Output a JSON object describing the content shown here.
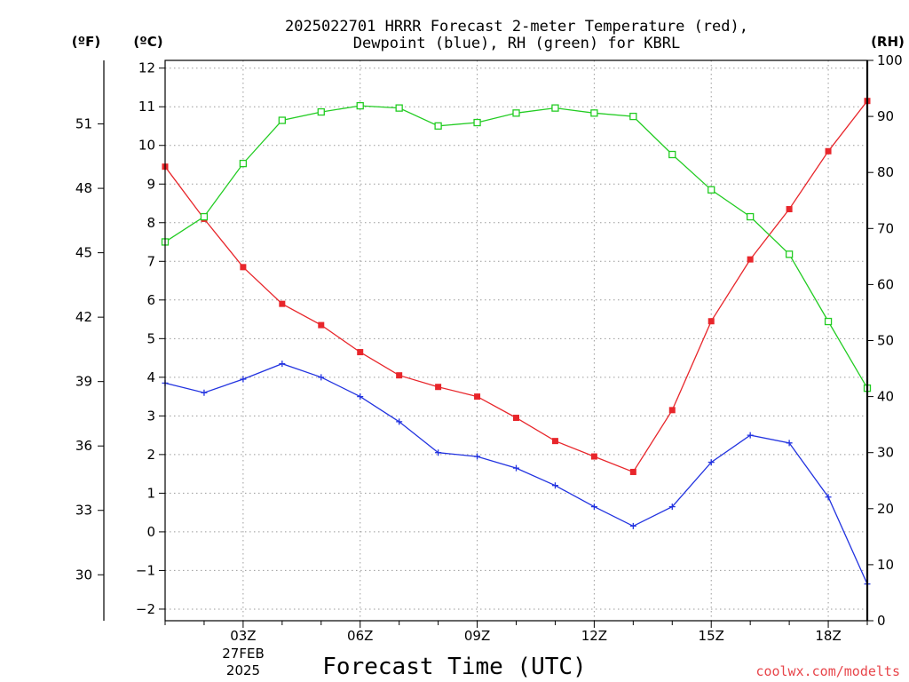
{
  "chart_data": {
    "type": "line",
    "title_lines": [
      "2025022701 HRRR Forecast 2-meter Temperature (red),",
      "Dewpoint (blue), RH (green) for KBRL"
    ],
    "xlabel": "Forecast Time (UTC)",
    "credit": "coolwx.com/modelts",
    "units": {
      "left_f": "(ºF)",
      "left_c": "(ºC)",
      "right": "(RH)"
    },
    "x_hours": [
      1,
      2,
      3,
      4,
      5,
      6,
      7,
      8,
      9,
      10,
      11,
      12,
      13,
      14,
      15,
      16,
      17,
      18,
      19
    ],
    "xlim": [
      1,
      19
    ],
    "x_ticks": [
      {
        "hour": 3,
        "label": "03Z"
      },
      {
        "hour": 6,
        "label": "06Z"
      },
      {
        "hour": 9,
        "label": "09Z"
      },
      {
        "hour": 12,
        "label": "12Z"
      },
      {
        "hour": 15,
        "label": "15Z"
      },
      {
        "hour": 18,
        "label": "18Z"
      }
    ],
    "date_labels": [
      "27FEB",
      "2025"
    ],
    "y_celsius": {
      "lim": [
        -2.3,
        12.2
      ],
      "ticks": [
        -2,
        -1,
        0,
        1,
        2,
        3,
        4,
        5,
        6,
        7,
        8,
        9,
        10,
        11,
        12
      ],
      "tick_labels": [
        "−2",
        "−1",
        "0",
        "1",
        "2",
        "3",
        "4",
        "5",
        "6",
        "7",
        "8",
        "9",
        "10",
        "11",
        "12"
      ]
    },
    "y_fahrenheit": {
      "ticks": [
        30,
        33,
        36,
        39,
        42,
        45,
        48,
        51
      ],
      "tick_labels": [
        "30",
        "33",
        "36",
        "39",
        "42",
        "45",
        "48",
        "51"
      ]
    },
    "y_rh": {
      "lim": [
        0,
        100
      ],
      "ticks": [
        0,
        10,
        20,
        30,
        40,
        50,
        60,
        70,
        80,
        90,
        100
      ],
      "tick_labels": [
        "0",
        "10",
        "20",
        "30",
        "40",
        "50",
        "60",
        "70",
        "80",
        "90",
        "100"
      ]
    },
    "grid": true,
    "series": [
      {
        "key": "temperature",
        "axis": "celsius",
        "color": "#e8262b",
        "marker": "filled-square",
        "values": [
          9.45,
          8.1,
          6.85,
          5.9,
          5.35,
          4.65,
          4.05,
          3.75,
          3.5,
          2.95,
          2.35,
          1.95,
          1.55,
          3.15,
          5.45,
          7.05,
          8.35,
          9.85,
          11.15
        ]
      },
      {
        "key": "dewpoint",
        "axis": "celsius",
        "color": "#2233e0",
        "marker": "plus",
        "values": [
          3.85,
          3.6,
          3.95,
          4.35,
          4.0,
          3.5,
          2.85,
          2.05,
          1.95,
          1.65,
          1.2,
          0.65,
          0.15,
          0.65,
          1.8,
          2.5,
          2.3,
          0.9,
          -1.35
        ]
      },
      {
        "key": "rh",
        "axis": "rh",
        "color": "#22cc22",
        "marker": "open-square",
        "values": [
          67.6,
          72.1,
          81.6,
          89.3,
          90.8,
          91.9,
          91.5,
          88.3,
          88.9,
          90.6,
          91.5,
          90.6,
          90.0,
          83.2,
          76.9,
          72.1,
          65.4,
          53.4,
          41.5
        ]
      }
    ]
  }
}
